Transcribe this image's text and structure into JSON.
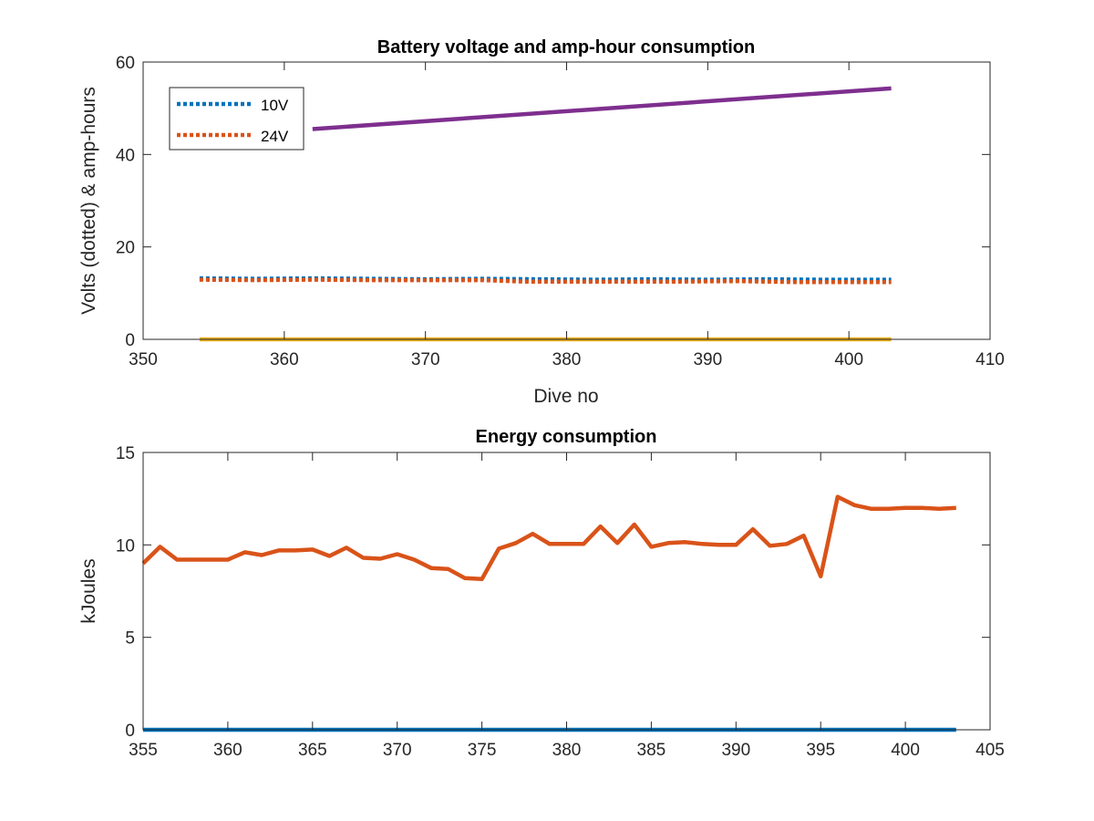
{
  "chart_data": [
    {
      "type": "line",
      "title": "Battery voltage and amp-hour consumption",
      "xlabel": "Dive no",
      "ylabel": "Volts (dotted) & amp-hours",
      "xlim": [
        350,
        410
      ],
      "ylim": [
        0,
        60
      ],
      "xticks": [
        350,
        360,
        370,
        380,
        390,
        400,
        410
      ],
      "yticks": [
        0,
        20,
        40,
        60
      ],
      "grid": false,
      "legend_position": "top-left",
      "series": [
        {
          "name": "10V",
          "style": "dotted",
          "color": "#0072BD",
          "x": [
            354,
            358,
            362,
            366,
            370,
            374,
            378,
            382,
            386,
            390,
            394,
            398,
            403
          ],
          "y": [
            13.2,
            13.1,
            13.2,
            13.1,
            13.0,
            13.1,
            13.0,
            12.9,
            13.0,
            12.9,
            13.0,
            12.9,
            12.9
          ]
        },
        {
          "name": "24V",
          "style": "dotted",
          "color": "#D95319",
          "x": [
            354,
            358,
            362,
            366,
            370,
            374,
            377,
            380,
            384,
            388,
            392,
            396,
            400,
            403
          ],
          "y": [
            12.9,
            12.8,
            12.9,
            12.8,
            12.8,
            12.8,
            12.5,
            12.5,
            12.5,
            12.5,
            12.6,
            12.4,
            12.4,
            12.4
          ]
        },
        {
          "style": "solid",
          "color": "#EDB120",
          "x": [
            354,
            403
          ],
          "y": [
            0,
            0
          ]
        },
        {
          "style": "solid",
          "color": "#7E2F8E",
          "x": [
            362,
            403
          ],
          "y": [
            45.5,
            54.3
          ]
        }
      ]
    },
    {
      "type": "line",
      "title": "Energy consumption",
      "xlabel": "",
      "ylabel": "kJoules",
      "xlim": [
        355,
        405
      ],
      "ylim": [
        0,
        15
      ],
      "xticks": [
        355,
        360,
        365,
        370,
        375,
        380,
        385,
        390,
        395,
        400,
        405
      ],
      "yticks": [
        0,
        5,
        10,
        15
      ],
      "grid": false,
      "series": [
        {
          "style": "solid",
          "color": "#0072BD",
          "x": [
            355,
            403
          ],
          "y": [
            0,
            0
          ]
        },
        {
          "style": "solid",
          "color": "#D95319",
          "x": [
            355,
            356,
            357,
            358,
            359,
            360,
            361,
            362,
            363,
            364,
            365,
            366,
            367,
            368,
            369,
            370,
            371,
            372,
            373,
            374,
            375,
            376,
            377,
            378,
            379,
            380,
            381,
            382,
            383,
            384,
            385,
            386,
            387,
            388,
            389,
            390,
            391,
            392,
            393,
            394,
            395,
            396,
            397,
            398,
            399,
            400,
            401,
            402,
            403
          ],
          "y": [
            9.0,
            9.9,
            9.2,
            9.2,
            9.2,
            9.2,
            9.6,
            9.45,
            9.7,
            9.7,
            9.75,
            9.4,
            9.85,
            9.3,
            9.25,
            9.5,
            9.2,
            8.75,
            8.7,
            8.2,
            8.15,
            9.8,
            10.1,
            10.6,
            10.05,
            10.05,
            10.05,
            11.0,
            10.1,
            11.1,
            9.9,
            10.1,
            10.15,
            10.05,
            10.0,
            10.0,
            10.85,
            9.95,
            10.05,
            10.5,
            8.3,
            12.6,
            12.15,
            11.95,
            11.95,
            12.0,
            12.0,
            11.95,
            12.0
          ]
        }
      ]
    }
  ]
}
